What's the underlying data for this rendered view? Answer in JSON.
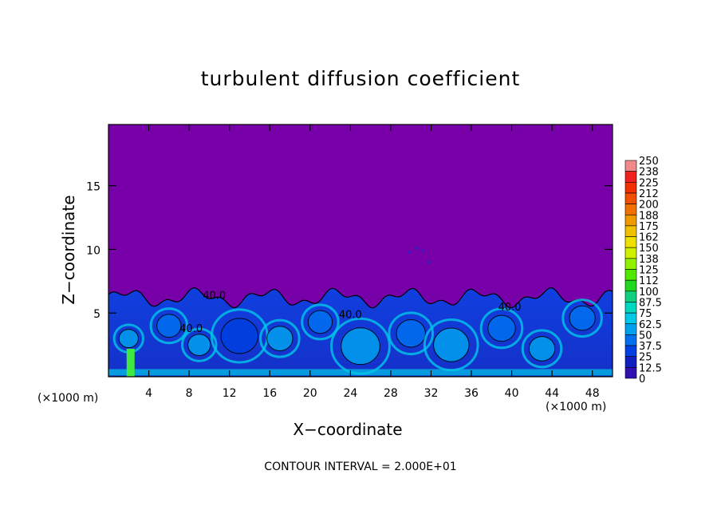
{
  "chart_data": {
    "type": "heatmap",
    "title": "turbulent diffusion coefficient",
    "xlabel": "X−coordinate",
    "ylabel": "Z−coordinate",
    "x_unit_label": "(×1000 m)",
    "x_ticks": [
      4,
      8,
      12,
      16,
      20,
      24,
      28,
      32,
      36,
      40,
      44,
      48
    ],
    "y_ticks": [
      5,
      10,
      15
    ],
    "xlim": [
      0,
      50
    ],
    "ylim": [
      0,
      19.8
    ],
    "footer": "CONTOUR INTERVAL = 2.000E+01",
    "contour_labels": [
      {
        "text": "40.0",
        "x": 10.5,
        "z": 6.1
      },
      {
        "text": "40.0",
        "x": 24.0,
        "z": 4.6
      },
      {
        "text": "40.0",
        "x": 8.2,
        "z": 3.5
      },
      {
        "text": "40.0",
        "x": 39.8,
        "z": 5.2
      }
    ],
    "colorbar": {
      "levels": [
        "250",
        "238",
        "225",
        "212",
        "200",
        "188",
        "175",
        "162",
        "150",
        "138",
        "125",
        "112",
        "100",
        "87.5",
        "75",
        "62.5",
        "50",
        "37.5",
        "25",
        "12.5",
        "0"
      ],
      "colors": [
        "#f08a8a",
        "#f02020",
        "#f03000",
        "#f05000",
        "#f07000",
        "#f09800",
        "#f0c000",
        "#f0e000",
        "#d0f000",
        "#90f000",
        "#50e800",
        "#20d820",
        "#10d080",
        "#00d8c0",
        "#00c8e8",
        "#00a0f0",
        "#0070f0",
        "#0040e0",
        "#1020c0",
        "#3010b0",
        "#7800b0"
      ]
    },
    "background_color": "#7800a8",
    "turbulent_layer_top_z": 6.8,
    "notes_values": []
  }
}
